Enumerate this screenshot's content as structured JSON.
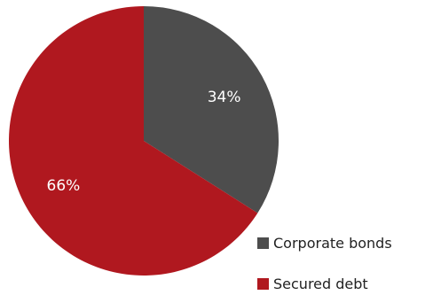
{
  "chart_data": {
    "type": "pie",
    "title": "",
    "slices": [
      {
        "label": "Corporate bonds",
        "value": 34,
        "value_label": "34%",
        "color": "#4d4d4d"
      },
      {
        "label": "Secured debt",
        "value": 66,
        "value_label": "66%",
        "color": "#b0181f"
      }
    ],
    "start_position": "top (12 o'clock)",
    "direction": "clockwise",
    "legend_position": "bottom-right"
  }
}
